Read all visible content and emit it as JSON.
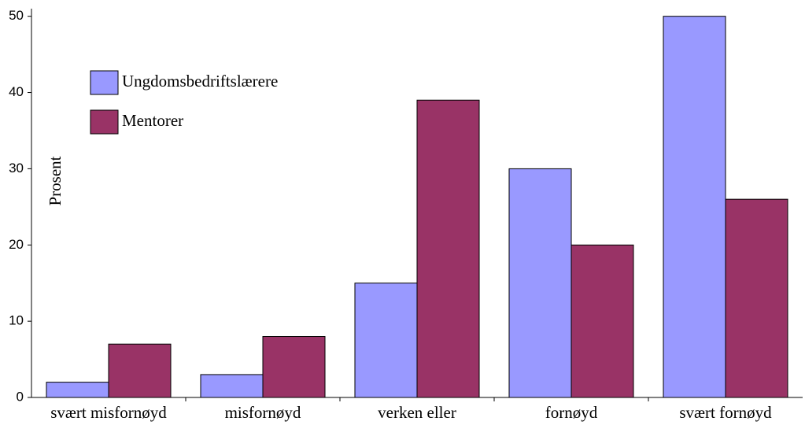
{
  "chart_data": {
    "type": "bar",
    "y_label": "Prosent",
    "categories": [
      "svært misfornøyd",
      "misfornøyd",
      "verken eller",
      "fornøyd",
      "svært fornøyd"
    ],
    "series": [
      {
        "name": "Ungdomsbedriftslærere",
        "color": "#9999ff",
        "values": [
          2,
          3,
          15,
          30,
          50
        ]
      },
      {
        "name": "Mentorer",
        "color": "#993366",
        "values": [
          7,
          8,
          39,
          20,
          26
        ]
      }
    ],
    "ylim": [
      0,
      51
    ],
    "yticks": [
      0,
      10,
      20,
      30,
      40,
      50
    ],
    "grid": false,
    "legend": "upper left"
  }
}
